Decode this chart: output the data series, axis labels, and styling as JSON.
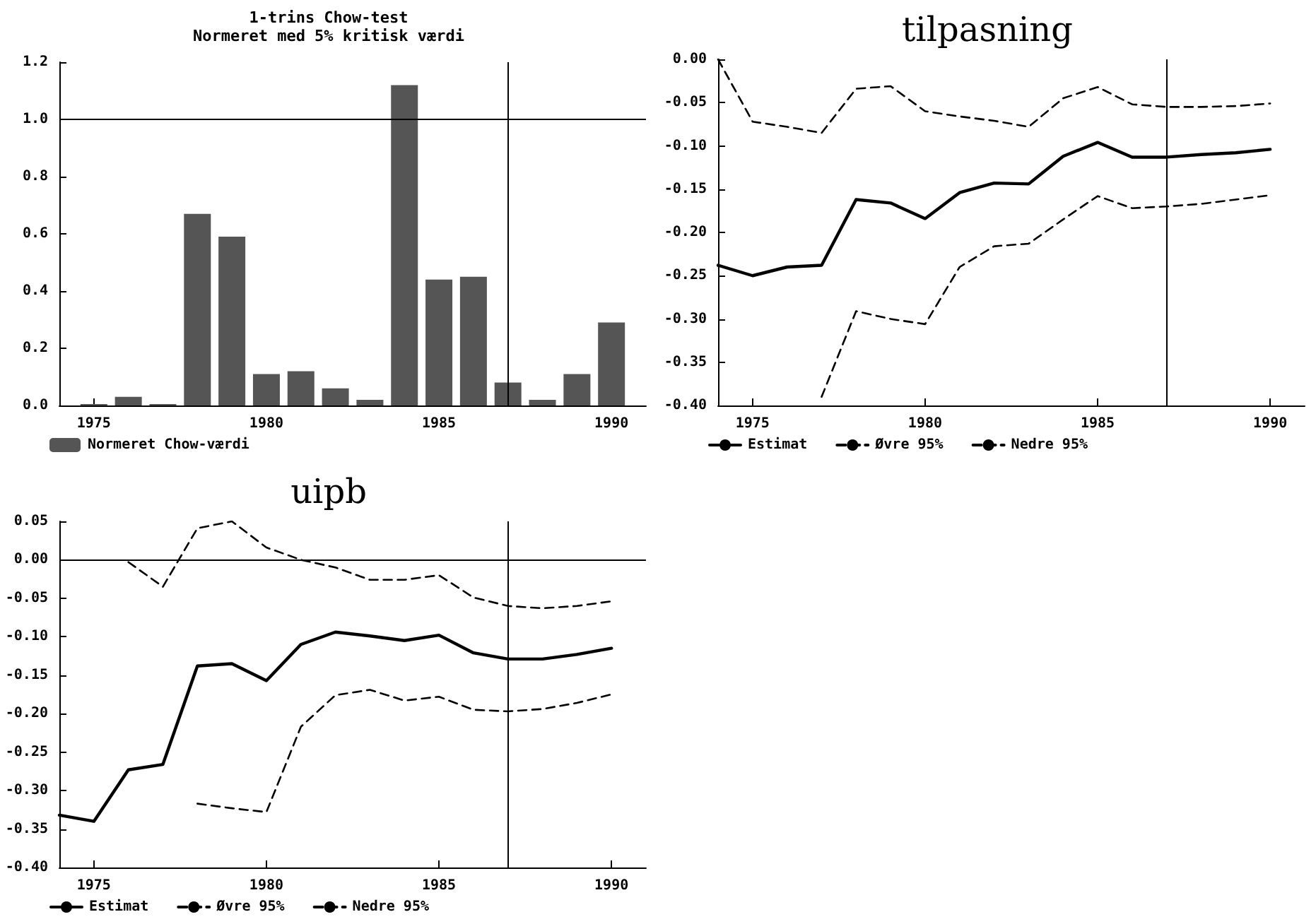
{
  "chart_data": [
    {
      "type": "bar",
      "title": "1-trins Chow-test",
      "subtitle": "Normeret med 5% kritisk værdi",
      "x": [
        1975,
        1976,
        1977,
        1978,
        1979,
        1980,
        1981,
        1982,
        1983,
        1984,
        1985,
        1986,
        1987,
        1988,
        1989,
        1990
      ],
      "series": [
        {
          "name": "Normeret Chow-værdi",
          "color": "#555555",
          "values": [
            0.005,
            0.03,
            0.005,
            0.67,
            0.59,
            0.11,
            0.12,
            0.06,
            0.02,
            1.12,
            0.44,
            0.45,
            0.08,
            0.02,
            0.11,
            0.29
          ]
        }
      ],
      "xlim": [
        1974,
        1991
      ],
      "xticks": [
        1975,
        1980,
        1985,
        1990
      ],
      "ylim": [
        0,
        1.2
      ],
      "yticks": [
        {
          "value": 0,
          "label": "0.0"
        },
        {
          "value": 0.2,
          "label": "0.2"
        },
        {
          "value": 0.4,
          "label": "0.4"
        },
        {
          "value": 0.6,
          "label": "0.6"
        },
        {
          "value": 0.8,
          "label": "0.8"
        },
        {
          "value": 1,
          "label": "1.0"
        },
        {
          "value": 1.2,
          "label": "1.2"
        }
      ],
      "ref_lines": [
        {
          "axis": "y",
          "value": 1
        },
        {
          "axis": "x",
          "value": 1987
        }
      ],
      "grid": false,
      "legend": "bottom left"
    },
    {
      "type": "line",
      "title": "tilpasning",
      "x": [
        1974,
        1975,
        1976,
        1977,
        1978,
        1979,
        1980,
        1981,
        1982,
        1983,
        1984,
        1985,
        1986,
        1987,
        1988,
        1989,
        1990
      ],
      "series": [
        {
          "name": "Estimat",
          "color": "#000000",
          "line_style": "solid",
          "values": [
            -0.238,
            -0.25,
            -0.24,
            -0.238,
            -0.162,
            -0.166,
            -0.184,
            -0.154,
            -0.143,
            -0.144,
            -0.112,
            -0.096,
            -0.113,
            -0.113,
            -0.11,
            -0.108,
            -0.104
          ]
        },
        {
          "name": "Øvre 95%",
          "color": "#000000",
          "line_style": "dashed",
          "values": [
            0,
            -0.072,
            -0.078,
            -0.085,
            -0.034,
            -0.031,
            -0.06,
            -0.066,
            -0.071,
            -0.078,
            -0.045,
            -0.032,
            -0.052,
            -0.055,
            -0.055,
            -0.054,
            -0.051
          ]
        },
        {
          "name": "Nedre 95%",
          "color": "#000000",
          "line_style": "dashed",
          "values": [
            null,
            null,
            null,
            -0.39,
            -0.291,
            -0.3,
            -0.306,
            -0.24,
            -0.216,
            -0.213,
            -0.185,
            -0.158,
            -0.172,
            -0.17,
            -0.167,
            -0.162,
            -0.157
          ]
        }
      ],
      "xlim": [
        1974,
        1991
      ],
      "xticks": [
        1975,
        1980,
        1985,
        1990
      ],
      "ylim": [
        -0.4,
        0
      ],
      "yticks": [
        {
          "value": -0.4,
          "label": "-0.40"
        },
        {
          "value": -0.35,
          "label": "-0.35"
        },
        {
          "value": -0.3,
          "label": "-0.30"
        },
        {
          "value": -0.25,
          "label": "-0.25"
        },
        {
          "value": -0.2,
          "label": "-0.20"
        },
        {
          "value": -0.15,
          "label": "-0.15"
        },
        {
          "value": -0.1,
          "label": "-0.10"
        },
        {
          "value": -0.05,
          "label": "-0.05"
        },
        {
          "value": 0,
          "label": "0.00"
        }
      ],
      "ref_lines": [
        {
          "axis": "x",
          "value": 1987
        }
      ],
      "grid": false,
      "legend": "bottom left",
      "marker": "none"
    },
    {
      "type": "line",
      "title": "uipb",
      "x": [
        1974,
        1975,
        1976,
        1977,
        1978,
        1979,
        1980,
        1981,
        1982,
        1983,
        1984,
        1985,
        1986,
        1987,
        1988,
        1989,
        1990
      ],
      "series": [
        {
          "name": "Estimat",
          "color": "#000000",
          "line_style": "solid",
          "values": [
            -0.332,
            -0.34,
            -0.273,
            -0.266,
            -0.138,
            -0.135,
            -0.157,
            -0.11,
            -0.094,
            -0.099,
            -0.105,
            -0.098,
            -0.121,
            -0.129,
            -0.129,
            -0.123,
            -0.115
          ]
        },
        {
          "name": "Øvre 95%",
          "color": "#000000",
          "line_style": "dashed",
          "values": [
            null,
            null,
            -0.003,
            -0.035,
            0.041,
            0.05,
            0.016,
            0,
            -0.01,
            -0.026,
            -0.026,
            -0.02,
            -0.049,
            -0.06,
            -0.063,
            -0.06,
            -0.054
          ]
        },
        {
          "name": "Nedre 95%",
          "color": "#000000",
          "line_style": "dashed",
          "values": [
            null,
            null,
            null,
            null,
            -0.317,
            -0.323,
            -0.328,
            -0.217,
            -0.176,
            -0.169,
            -0.183,
            -0.178,
            -0.195,
            -0.197,
            -0.194,
            -0.186,
            -0.175
          ]
        }
      ],
      "xlim": [
        1974,
        1991
      ],
      "xticks": [
        1975,
        1980,
        1985,
        1990
      ],
      "ylim": [
        -0.4,
        0.05
      ],
      "yticks": [
        {
          "value": -0.4,
          "label": "-0.40"
        },
        {
          "value": -0.35,
          "label": "-0.35"
        },
        {
          "value": -0.3,
          "label": "-0.30"
        },
        {
          "value": -0.25,
          "label": "-0.25"
        },
        {
          "value": -0.2,
          "label": "-0.20"
        },
        {
          "value": -0.15,
          "label": "-0.15"
        },
        {
          "value": -0.1,
          "label": "-0.10"
        },
        {
          "value": -0.05,
          "label": "-0.05"
        },
        {
          "value": 0,
          "label": "0.00"
        },
        {
          "value": 0.05,
          "label": "0.05"
        }
      ],
      "ref_lines": [
        {
          "axis": "y",
          "value": 0
        },
        {
          "axis": "x",
          "value": 1987
        }
      ],
      "grid": false,
      "legend": "bottom left",
      "marker": "none"
    }
  ]
}
